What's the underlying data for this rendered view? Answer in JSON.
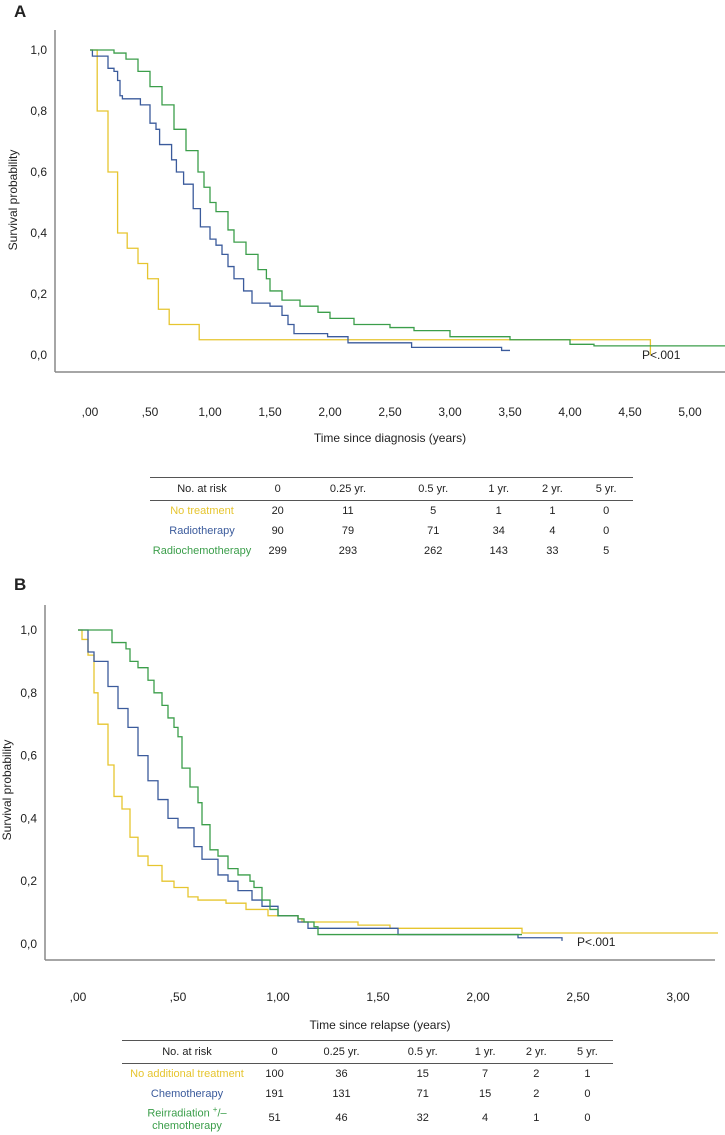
{
  "colors": {
    "no_treatment": "#e6c52f",
    "radiotherapy": "#3b5b9c",
    "radiochemotherapy": "#3b9e4a",
    "axis": "#888888"
  },
  "chart_data": [
    {
      "panel": "A",
      "type": "line",
      "subtype": "kaplan-meier",
      "xlabel": "Time since diagnosis (years)",
      "ylabel": "Survival probability",
      "x_ticks": [
        0,
        0.5,
        1,
        1.5,
        2,
        2.5,
        3,
        3.5,
        4,
        4.5,
        5
      ],
      "x_tick_labels": [
        ",00",
        ",50",
        "1,00",
        "1,50",
        "2,00",
        "2,50",
        "3,00",
        "3,50",
        "4,00",
        "4,50",
        "5,00"
      ],
      "y_ticks": [
        0,
        0.2,
        0.4,
        0.6,
        0.8,
        1.0
      ],
      "y_tick_labels": [
        "0,0",
        "0,2",
        "0,4",
        "0,6",
        "0,8",
        "1,0"
      ],
      "xlim": [
        -0.3,
        5.3
      ],
      "ylim": [
        0,
        1
      ],
      "annotation": "P<.001",
      "series": [
        {
          "name": "No treatment",
          "color_key": "no_treatment",
          "end": 4.67,
          "points": [
            [
              0,
              1
            ],
            [
              0.06,
              0.8
            ],
            [
              0.15,
              0.6
            ],
            [
              0.23,
              0.4
            ],
            [
              0.31,
              0.35
            ],
            [
              0.4,
              0.3
            ],
            [
              0.48,
              0.25
            ],
            [
              0.57,
              0.15
            ],
            [
              0.66,
              0.1
            ],
            [
              0.91,
              0.05
            ],
            [
              4.67,
              0
            ]
          ]
        },
        {
          "name": "Radiotherapy",
          "color_key": "radiotherapy",
          "end": 3.5,
          "points": [
            [
              0,
              1
            ],
            [
              0.02,
              0.98
            ],
            [
              0.15,
              0.94
            ],
            [
              0.2,
              0.93
            ],
            [
              0.23,
              0.9
            ],
            [
              0.25,
              0.85
            ],
            [
              0.27,
              0.84
            ],
            [
              0.42,
              0.82
            ],
            [
              0.5,
              0.76
            ],
            [
              0.55,
              0.74
            ],
            [
              0.58,
              0.69
            ],
            [
              0.68,
              0.64
            ],
            [
              0.72,
              0.6
            ],
            [
              0.78,
              0.56
            ],
            [
              0.86,
              0.48
            ],
            [
              0.92,
              0.42
            ],
            [
              1.0,
              0.38
            ],
            [
              1.05,
              0.36
            ],
            [
              1.1,
              0.33
            ],
            [
              1.15,
              0.29
            ],
            [
              1.2,
              0.25
            ],
            [
              1.28,
              0.21
            ],
            [
              1.35,
              0.17
            ],
            [
              1.5,
              0.16
            ],
            [
              1.6,
              0.13
            ],
            [
              1.65,
              0.1
            ],
            [
              1.7,
              0.07
            ],
            [
              1.98,
              0.06
            ],
            [
              2.15,
              0.04
            ],
            [
              2.68,
              0.025
            ],
            [
              3.43,
              0.015
            ]
          ]
        },
        {
          "name": "Radiochemotherapy",
          "color_key": "radiochemotherapy",
          "end": 5.3,
          "points": [
            [
              0,
              1
            ],
            [
              0.2,
              0.99
            ],
            [
              0.3,
              0.97
            ],
            [
              0.4,
              0.93
            ],
            [
              0.5,
              0.88
            ],
            [
              0.6,
              0.82
            ],
            [
              0.7,
              0.74
            ],
            [
              0.8,
              0.67
            ],
            [
              0.9,
              0.6
            ],
            [
              0.95,
              0.55
            ],
            [
              1.0,
              0.5
            ],
            [
              1.05,
              0.47
            ],
            [
              1.15,
              0.41
            ],
            [
              1.2,
              0.37
            ],
            [
              1.3,
              0.33
            ],
            [
              1.4,
              0.28
            ],
            [
              1.47,
              0.25
            ],
            [
              1.5,
              0.21
            ],
            [
              1.6,
              0.18
            ],
            [
              1.75,
              0.16
            ],
            [
              1.9,
              0.14
            ],
            [
              2.0,
              0.12
            ],
            [
              2.2,
              0.1
            ],
            [
              2.5,
              0.09
            ],
            [
              2.7,
              0.08
            ],
            [
              3.0,
              0.06
            ],
            [
              3.5,
              0.05
            ],
            [
              4.0,
              0.035
            ],
            [
              4.2,
              0.03
            ]
          ]
        }
      ]
    },
    {
      "panel": "B",
      "type": "line",
      "subtype": "kaplan-meier",
      "xlabel": "Time since relapse (years)",
      "ylabel": "Survival probability",
      "x_ticks": [
        0,
        0.5,
        1,
        1.5,
        2,
        2.5,
        3
      ],
      "x_tick_labels": [
        ",00",
        ",50",
        "1,00",
        "1,50",
        "2,00",
        "2,50",
        "3,00"
      ],
      "y_ticks": [
        0,
        0.2,
        0.4,
        0.6,
        0.8,
        1.0
      ],
      "y_tick_labels": [
        "0,0",
        "0,2",
        "0,4",
        "0,6",
        "0,8",
        "1,0"
      ],
      "xlim": [
        -0.16,
        3.2
      ],
      "ylim": [
        0,
        1
      ],
      "annotation": "P<.001",
      "series": [
        {
          "name": "No additional treatment",
          "color_key": "no_treatment",
          "end": 3.2,
          "points": [
            [
              0,
              1
            ],
            [
              0.02,
              0.97
            ],
            [
              0.05,
              0.92
            ],
            [
              0.08,
              0.8
            ],
            [
              0.1,
              0.7
            ],
            [
              0.15,
              0.57
            ],
            [
              0.18,
              0.47
            ],
            [
              0.22,
              0.43
            ],
            [
              0.26,
              0.34
            ],
            [
              0.3,
              0.28
            ],
            [
              0.35,
              0.25
            ],
            [
              0.42,
              0.2
            ],
            [
              0.48,
              0.18
            ],
            [
              0.55,
              0.15
            ],
            [
              0.6,
              0.14
            ],
            [
              0.74,
              0.13
            ],
            [
              0.84,
              0.11
            ],
            [
              0.95,
              0.09
            ],
            [
              1.1,
              0.08
            ],
            [
              1.12,
              0.07
            ],
            [
              1.4,
              0.06
            ],
            [
              1.56,
              0.05
            ],
            [
              2.22,
              0.035
            ]
          ]
        },
        {
          "name": "Chemotherapy",
          "color_key": "radiotherapy",
          "end": 2.42,
          "points": [
            [
              0,
              1
            ],
            [
              0.05,
              0.93
            ],
            [
              0.08,
              0.9
            ],
            [
              0.15,
              0.82
            ],
            [
              0.2,
              0.75
            ],
            [
              0.25,
              0.69
            ],
            [
              0.3,
              0.6
            ],
            [
              0.35,
              0.52
            ],
            [
              0.4,
              0.46
            ],
            [
              0.45,
              0.4
            ],
            [
              0.5,
              0.37
            ],
            [
              0.58,
              0.31
            ],
            [
              0.62,
              0.27
            ],
            [
              0.7,
              0.22
            ],
            [
              0.75,
              0.2
            ],
            [
              0.8,
              0.17
            ],
            [
              0.87,
              0.14
            ],
            [
              0.92,
              0.12
            ],
            [
              1.0,
              0.09
            ],
            [
              1.1,
              0.07
            ],
            [
              1.15,
              0.05
            ],
            [
              1.6,
              0.03
            ],
            [
              2.2,
              0.02
            ],
            [
              2.42,
              0.01
            ]
          ]
        },
        {
          "name": "Reirradiation +/– chemotherapy",
          "color_key": "radiochemotherapy",
          "end": 2.22,
          "points": [
            [
              0,
              1
            ],
            [
              0.17,
              0.96
            ],
            [
              0.24,
              0.94
            ],
            [
              0.26,
              0.9
            ],
            [
              0.3,
              0.88
            ],
            [
              0.35,
              0.84
            ],
            [
              0.38,
              0.8
            ],
            [
              0.42,
              0.76
            ],
            [
              0.45,
              0.72
            ],
            [
              0.48,
              0.69
            ],
            [
              0.5,
              0.66
            ],
            [
              0.52,
              0.56
            ],
            [
              0.56,
              0.5
            ],
            [
              0.6,
              0.45
            ],
            [
              0.62,
              0.38
            ],
            [
              0.66,
              0.3
            ],
            [
              0.7,
              0.28
            ],
            [
              0.75,
              0.24
            ],
            [
              0.8,
              0.22
            ],
            [
              0.86,
              0.2
            ],
            [
              0.88,
              0.18
            ],
            [
              0.92,
              0.14
            ],
            [
              0.96,
              0.11
            ],
            [
              1.0,
              0.09
            ],
            [
              1.1,
              0.08
            ],
            [
              1.13,
              0.07
            ],
            [
              1.18,
              0.055
            ],
            [
              1.2,
              0.03
            ]
          ]
        }
      ]
    }
  ],
  "panel_labels": {
    "a": "A",
    "b": "B"
  },
  "risk_table_a": {
    "headers": [
      "No. at risk",
      "0",
      "0.25 yr.",
      "0.5 yr.",
      "1 yr.",
      "2 yr.",
      "5 yr."
    ],
    "rows": [
      {
        "label": "No treatment",
        "values": [
          "20",
          "11",
          "5",
          "1",
          "1",
          "0"
        ]
      },
      {
        "label": "Radiotherapy",
        "values": [
          "90",
          "79",
          "71",
          "34",
          "4",
          "0"
        ]
      },
      {
        "label": "Radiochemotherapy",
        "values": [
          "299",
          "293",
          "262",
          "143",
          "33",
          "5"
        ]
      }
    ]
  },
  "risk_table_b": {
    "headers": [
      "No. at risk",
      "0",
      "0.25 yr.",
      "0.5 yr.",
      "1 yr.",
      "2 yr.",
      "5 yr."
    ],
    "rows": [
      {
        "label": "No additional treatment",
        "values": [
          "100",
          "36",
          "15",
          "7",
          "2",
          "1"
        ]
      },
      {
        "label": "Chemotherapy",
        "values": [
          "191",
          "131",
          "71",
          "15",
          "2",
          "0"
        ]
      },
      {
        "label_line1": "Reirradiation ",
        "label_sup": "+",
        "label_line1b": "/–",
        "label_line2": "chemotherapy",
        "values": [
          "51",
          "46",
          "32",
          "4",
          "1",
          "0"
        ]
      }
    ]
  }
}
